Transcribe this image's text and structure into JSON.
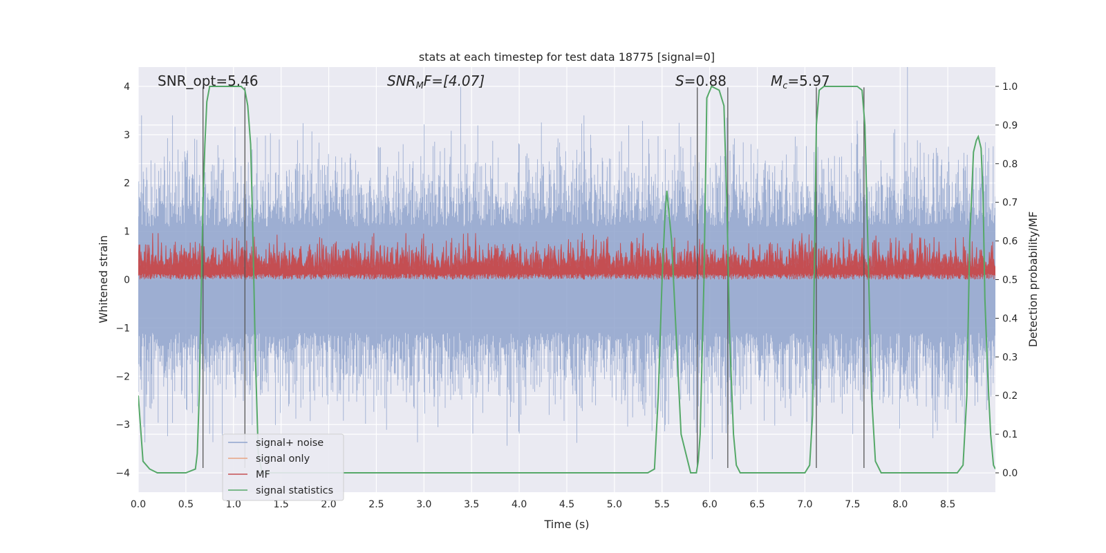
{
  "chart_data": {
    "type": "line",
    "title": "stats at each timestep for test data 18775 [signal=0]",
    "xlabel": "Time (s)",
    "ylabel_left": "Whitened strain",
    "ylabel_right": "Detection probability/MF",
    "xlim": [
      0,
      9.0
    ],
    "ylim_left": [
      -4.4,
      4.4
    ],
    "ylim_right": [
      -0.05,
      1.05
    ],
    "x_ticks": [
      "0.0",
      "0.5",
      "1.0",
      "1.5",
      "2.0",
      "2.5",
      "3.0",
      "3.5",
      "4.0",
      "4.5",
      "5.0",
      "5.5",
      "6.0",
      "6.5",
      "7.0",
      "7.5",
      "8.0",
      "8.5"
    ],
    "y_left_ticks": [
      "−4",
      "−3",
      "−2",
      "−1",
      "0",
      "1",
      "2",
      "3",
      "4"
    ],
    "y_right_ticks": [
      "0.0",
      "0.1",
      "0.2",
      "0.3",
      "0.4",
      "0.5",
      "0.6",
      "0.7",
      "0.8",
      "0.9",
      "1.0"
    ],
    "grid": true,
    "legend_position": "lower-left",
    "annotations": {
      "snr_opt": "SNR_opt=5.46",
      "snr_mf_base": "SNR",
      "snr_mf_sub": "M",
      "snr_mf_rest": "F=[4.07]",
      "s_sym": "S",
      "s_val": "=0.88",
      "mc_base": "M",
      "mc_sub": "c",
      "mc_val": "=5.97"
    },
    "series": [
      {
        "name": "signal+ noise",
        "color": "#8fa3cc",
        "note_range": [
          -3.9,
          3.4
        ]
      },
      {
        "name": "signal only",
        "color": "#e8a382"
      },
      {
        "name": "MF",
        "color": "#c44e52",
        "baseline_prob": 0.5,
        "range_prob": [
          0.5,
          0.62
        ]
      },
      {
        "name": "signal statistics",
        "color": "#55a868",
        "x": [
          0.0,
          0.05,
          0.12,
          0.2,
          0.3,
          0.4,
          0.5,
          0.6,
          0.62,
          0.64,
          0.66,
          0.68,
          0.7,
          0.72,
          0.75,
          0.8,
          0.9,
          1.0,
          1.08,
          1.12,
          1.15,
          1.18,
          1.2,
          1.23,
          1.26,
          1.3,
          1.5,
          2.0,
          3.0,
          4.0,
          4.4,
          5.0,
          5.35,
          5.42,
          5.46,
          5.5,
          5.53,
          5.55,
          5.6,
          5.65,
          5.7,
          5.8,
          5.86,
          5.88,
          5.9,
          5.94,
          5.97,
          6.02,
          6.1,
          6.15,
          6.18,
          6.21,
          6.25,
          6.28,
          6.32,
          6.4,
          6.5,
          7.0,
          7.05,
          7.08,
          7.1,
          7.12,
          7.15,
          7.2,
          7.3,
          7.5,
          7.55,
          7.6,
          7.63,
          7.66,
          7.7,
          7.74,
          7.8,
          8.0,
          8.5,
          8.6,
          8.66,
          8.7,
          8.73,
          8.77,
          8.8,
          8.82,
          8.85,
          8.87,
          8.89,
          8.92,
          8.95,
          8.98,
          9.0
        ],
        "values": [
          0.2,
          0.03,
          0.01,
          0.0,
          0.0,
          0.0,
          0.0,
          0.01,
          0.05,
          0.2,
          0.45,
          0.7,
          0.85,
          0.96,
          1.0,
          1.0,
          1.0,
          1.0,
          1.0,
          0.99,
          0.95,
          0.85,
          0.66,
          0.3,
          0.05,
          0.0,
          0.0,
          0.0,
          0.0,
          0.0,
          0.0,
          0.0,
          0.0,
          0.01,
          0.2,
          0.5,
          0.66,
          0.73,
          0.6,
          0.35,
          0.1,
          0.0,
          0.0,
          0.03,
          0.1,
          0.5,
          0.97,
          1.0,
          0.99,
          0.95,
          0.7,
          0.35,
          0.1,
          0.02,
          0.0,
          0.0,
          0.0,
          0.0,
          0.02,
          0.15,
          0.55,
          0.9,
          0.99,
          1.0,
          1.0,
          1.0,
          1.0,
          0.99,
          0.9,
          0.6,
          0.2,
          0.03,
          0.0,
          0.0,
          0.0,
          0.0,
          0.02,
          0.2,
          0.6,
          0.83,
          0.86,
          0.87,
          0.84,
          0.72,
          0.45,
          0.25,
          0.1,
          0.02,
          0.01
        ]
      }
    ],
    "vertical_lines_x": [
      0.68,
      1.12,
      5.87,
      6.19,
      7.12,
      7.62
    ]
  }
}
